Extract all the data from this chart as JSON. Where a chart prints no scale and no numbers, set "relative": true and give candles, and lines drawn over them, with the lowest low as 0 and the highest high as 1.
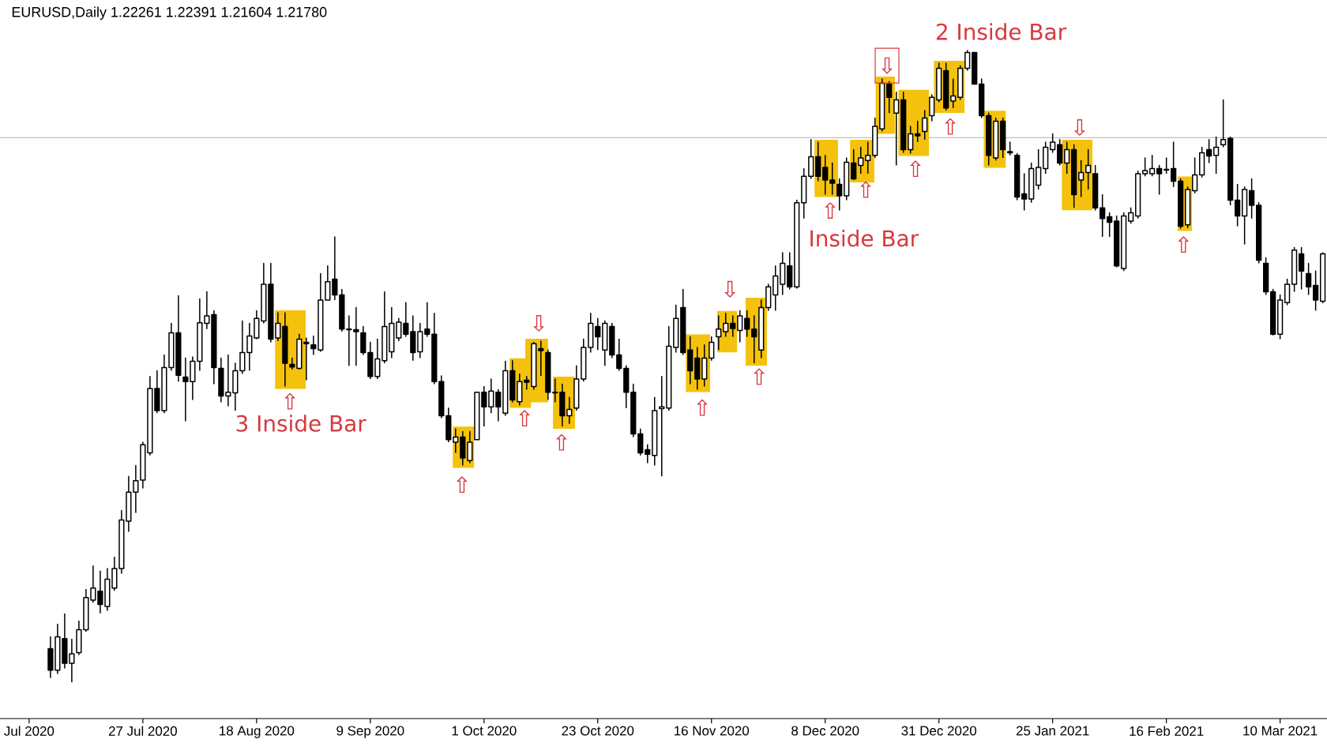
{
  "chart_data": {
    "type": "candlestick",
    "title": "EURUSD,Daily 1.22261 1.22391 1.21604 1.21780",
    "relative": true,
    "color": "#000000",
    "categories": [
      "Jul 2020",
      null,
      null,
      null,
      null,
      null,
      null,
      null,
      null,
      null,
      null,
      null,
      null,
      null,
      null,
      null,
      "27 Jul 2020",
      null,
      null,
      null,
      null,
      null,
      null,
      null,
      null,
      null,
      null,
      null,
      null,
      null,
      null,
      null,
      "18 Aug 2020",
      null,
      null,
      null,
      null,
      null,
      null,
      null,
      null,
      null,
      null,
      null,
      null,
      null,
      null,
      null,
      "9 Sep 2020",
      null,
      null,
      null,
      null,
      null,
      null,
      null,
      null,
      null,
      null,
      null,
      null,
      null,
      null,
      null,
      "1 Oct 2020",
      null,
      null,
      null,
      null,
      null,
      null,
      null,
      null,
      null,
      null,
      null,
      null,
      null,
      null,
      null,
      "23 Oct 2020",
      null,
      null,
      null,
      null,
      null,
      null,
      null,
      null,
      null,
      null,
      null,
      null,
      null,
      null,
      null,
      "16 Nov 2020",
      null,
      null,
      null,
      null,
      null,
      null,
      null,
      null,
      null,
      null,
      null,
      null,
      null,
      null,
      null,
      "8 Dec 2020",
      null,
      null,
      null,
      null,
      null,
      null,
      null,
      null,
      null,
      null,
      null,
      null,
      null,
      null,
      null,
      "31 Dec 2020",
      null,
      null,
      null,
      null,
      null,
      null,
      null,
      null,
      null,
      null,
      null,
      null,
      null,
      null,
      null,
      "25 Jan 2021",
      null,
      null,
      null,
      null,
      null,
      null,
      null,
      null,
      null,
      null,
      null,
      null,
      null,
      null,
      null,
      "16 Feb 2021",
      null,
      null,
      null,
      null,
      null,
      null,
      null,
      null,
      null,
      null,
      null,
      null,
      null,
      null,
      null,
      "10 Mar 2021",
      null,
      null,
      null,
      null,
      null,
      null
    ],
    "ohlc": [
      null,
      null,
      null,
      [
        0.053,
        0.072,
        0.007,
        0.019
      ],
      [
        0.019,
        0.092,
        0.013,
        0.072
      ],
      [
        0.069,
        0.108,
        0.022,
        0.03
      ],
      [
        0.03,
        0.068,
        0,
        0.045
      ],
      [
        0.047,
        0.097,
        0.043,
        0.083
      ],
      [
        0.083,
        0.147,
        0.08,
        0.134
      ],
      [
        0.13,
        0.184,
        0.126,
        0.149
      ],
      [
        0.144,
        0.176,
        0.109,
        0.123
      ],
      [
        0.12,
        0.18,
        0.113,
        0.163
      ],
      [
        0.149,
        0.198,
        0.145,
        0.18
      ],
      [
        0.18,
        0.272,
        0.172,
        0.257
      ],
      [
        0.255,
        0.326,
        0.238,
        0.301
      ],
      [
        0.301,
        0.343,
        0.268,
        0.319
      ],
      [
        0.32,
        0.38,
        0.307,
        0.376
      ],
      [
        0.363,
        0.484,
        0.359,
        0.465
      ],
      [
        0.465,
        0.493,
        0.426,
        0.43
      ],
      [
        0.43,
        0.518,
        0.426,
        0.498
      ],
      [
        0.498,
        0.568,
        0.493,
        0.553
      ],
      [
        0.553,
        0.612,
        0.476,
        0.486
      ],
      [
        0.483,
        0.513,
        0.413,
        0.476
      ],
      [
        0.476,
        0.515,
        0.447,
        0.508
      ],
      [
        0.508,
        0.607,
        0.493,
        0.569
      ],
      [
        0.568,
        0.618,
        0.559,
        0.58
      ],
      [
        0.582,
        0.588,
        0.472,
        0.498
      ],
      [
        0.497,
        0.513,
        0.443,
        0.453
      ],
      [
        0.453,
        0.518,
        0.437,
        0.459
      ],
      [
        0.458,
        0.505,
        0.43,
        0.493
      ],
      [
        0.493,
        0.572,
        0.488,
        0.522
      ],
      [
        0.522,
        0.568,
        0.493,
        0.548
      ],
      [
        0.545,
        0.588,
        0.543,
        0.576
      ],
      [
        0.572,
        0.663,
        0.568,
        0.63
      ],
      [
        0.63,
        0.663,
        0.538,
        0.543
      ],
      [
        0.545,
        0.585,
        0.54,
        0.568
      ],
      [
        0.563,
        0.585,
        0.468,
        0.505
      ],
      [
        0.503,
        0.513,
        0.495,
        0.499
      ],
      [
        0.497,
        0.551,
        0.495,
        0.543
      ],
      [
        0.538,
        0.545,
        0.478,
        0.536
      ],
      [
        0.534,
        0.548,
        0.518,
        0.528
      ],
      [
        0.526,
        0.647,
        0.523,
        0.605
      ],
      [
        0.605,
        0.659,
        0.605,
        0.634
      ],
      [
        0.638,
        0.705,
        0.605,
        0.613
      ],
      [
        0.613,
        0.622,
        0.555,
        0.559
      ],
      [
        0.559,
        0.58,
        0.501,
        0.558
      ],
      [
        0.558,
        0.593,
        0.501,
        0.555
      ],
      [
        0.553,
        0.563,
        0.518,
        0.522
      ],
      [
        0.522,
        0.538,
        0.48,
        0.484
      ],
      [
        0.484,
        0.543,
        0.48,
        0.512
      ],
      [
        0.509,
        0.618,
        0.505,
        0.563
      ],
      [
        0.523,
        0.593,
        0.513,
        0.568
      ],
      [
        0.545,
        0.576,
        0.54,
        0.57
      ],
      [
        0.568,
        0.601,
        0.547,
        0.551
      ],
      [
        0.555,
        0.58,
        0.509,
        0.522
      ],
      [
        0.523,
        0.568,
        0.513,
        0.555
      ],
      [
        0.559,
        0.601,
        0.547,
        0.551
      ],
      [
        0.551,
        0.584,
        0.472,
        0.476
      ],
      [
        0.476,
        0.485,
        0.418,
        0.422
      ],
      [
        0.422,
        0.434,
        0.38,
        0.384
      ],
      [
        0.38,
        0.401,
        0.363,
        0.388
      ],
      [
        0.388,
        0.397,
        0.343,
        0.355
      ],
      [
        0.351,
        0.397,
        0.347,
        0.38
      ],
      [
        0.384,
        0.459,
        0.384,
        0.459
      ],
      [
        0.459,
        0.468,
        0.405,
        0.436
      ],
      [
        0.436,
        0.48,
        0.426,
        0.461
      ],
      [
        0.459,
        0.463,
        0.413,
        0.436
      ],
      [
        0.426,
        0.508,
        0.422,
        0.493
      ],
      [
        0.493,
        0.509,
        0.443,
        0.447
      ],
      [
        0.444,
        0.488,
        0.438,
        0.476
      ],
      [
        0.478,
        0.484,
        0.463,
        0.475
      ],
      [
        0.468,
        0.538,
        0.463,
        0.536
      ],
      [
        0.528,
        0.54,
        0.485,
        0.525
      ],
      [
        0.522,
        0.526,
        0.447,
        0.459
      ],
      [
        0.459,
        0.48,
        0.443,
        0.458
      ],
      [
        0.459,
        0.472,
        0.405,
        0.422
      ],
      [
        0.422,
        0.451,
        0.409,
        0.432
      ],
      [
        0.434,
        0.501,
        0.43,
        0.48
      ],
      [
        0.48,
        0.543,
        0.476,
        0.53
      ],
      [
        0.53,
        0.584,
        0.522,
        0.568
      ],
      [
        0.563,
        0.576,
        0.526,
        0.547
      ],
      [
        0.526,
        0.572,
        0.501,
        0.568
      ],
      [
        0.563,
        0.568,
        0.513,
        0.518
      ],
      [
        0.518,
        0.543,
        0.493,
        0.497
      ],
      [
        0.497,
        0.501,
        0.434,
        0.459
      ],
      [
        0.459,
        0.472,
        0.388,
        0.393
      ],
      [
        0.393,
        0.401,
        0.359,
        0.363
      ],
      [
        0.368,
        0.376,
        0.347,
        0.361
      ],
      [
        0.359,
        0.451,
        0.343,
        0.43
      ],
      [
        0.433,
        0.484,
        0.326,
        0.436
      ],
      [
        0.434,
        0.563,
        0.43,
        0.532
      ],
      [
        0.53,
        0.597,
        0.522,
        0.576
      ],
      [
        0.593,
        0.622,
        0.518,
        0.522
      ],
      [
        0.526,
        0.547,
        0.472,
        0.493
      ],
      [
        0.513,
        0.53,
        0.463,
        0.48
      ],
      [
        0.48,
        0.534,
        0.468,
        0.513
      ],
      [
        0.513,
        0.547,
        0.509,
        0.538
      ],
      [
        0.547,
        0.58,
        0.526,
        0.559
      ],
      [
        0.555,
        0.584,
        0.547,
        0.568
      ],
      [
        0.568,
        0.58,
        0.547,
        0.56
      ],
      [
        0.557,
        0.588,
        0.538,
        0.58
      ],
      [
        0.576,
        0.588,
        0.547,
        0.559
      ],
      [
        0.559,
        0.58,
        0.505,
        0.547
      ],
      [
        0.526,
        0.605,
        0.513,
        0.593
      ],
      [
        0.593,
        0.63,
        0.588,
        0.626
      ],
      [
        0.613,
        0.659,
        0.588,
        0.643
      ],
      [
        0.63,
        0.68,
        0.613,
        0.663
      ],
      [
        0.659,
        0.68,
        0.622,
        0.626
      ],
      [
        0.626,
        0.763,
        0.623,
        0.759
      ],
      [
        0.759,
        0.813,
        0.734,
        0.801
      ],
      [
        0.801,
        0.859,
        0.797,
        0.832
      ],
      [
        0.832,
        0.855,
        0.793,
        0.801
      ],
      [
        0.815,
        0.834,
        0.772,
        0.795
      ],
      [
        0.795,
        0.822,
        0.772,
        0.79
      ],
      [
        0.788,
        0.797,
        0.747,
        0.77
      ],
      [
        0.77,
        0.83,
        0.763,
        0.823
      ],
      [
        0.822,
        0.843,
        0.795,
        0.797
      ],
      [
        0.818,
        0.847,
        0.805,
        0.83
      ],
      [
        0.826,
        0.855,
        0.805,
        0.834
      ],
      [
        0.834,
        0.893,
        0.83,
        0.88
      ],
      [
        0.876,
        0.955,
        0.872,
        0.948
      ],
      [
        0.947,
        0.951,
        0.901,
        0.926
      ],
      [
        0.901,
        0.934,
        0.818,
        0.922
      ],
      [
        0.922,
        0.934,
        0.838,
        0.843
      ],
      [
        0.843,
        0.88,
        0.837,
        0.868
      ],
      [
        0.868,
        0.888,
        0.855,
        0.865
      ],
      [
        0.872,
        0.905,
        0.859,
        0.893
      ],
      [
        0.897,
        0.93,
        0.888,
        0.926
      ],
      [
        0.922,
        0.98,
        0.918,
        0.972
      ],
      [
        0.968,
        0.98,
        0.905,
        0.909
      ],
      [
        0.92,
        0.955,
        0.909,
        0.928
      ],
      [
        0.926,
        0.976,
        0.922,
        0.972
      ],
      [
        0.972,
        1,
        0.968,
        0.997
      ],
      [
        0.997,
        0.997,
        0.947,
        0.947
      ],
      [
        0.947,
        0.955,
        0.893,
        0.897
      ],
      [
        0.897,
        0.901,
        0.818,
        0.834
      ],
      [
        0.83,
        0.893,
        0.826,
        0.888
      ],
      [
        0.888,
        0.893,
        0.83,
        0.843
      ],
      [
        0.84,
        0.855,
        0.834,
        0.838
      ],
      [
        0.834,
        0.837,
        0.763,
        0.768
      ],
      [
        0.773,
        0.805,
        0.747,
        0.765
      ],
      [
        0.765,
        0.822,
        0.759,
        0.813
      ],
      [
        0.787,
        0.843,
        0.78,
        0.815
      ],
      [
        0.813,
        0.855,
        0.805,
        0.847
      ],
      [
        0.843,
        0.868,
        0.838,
        0.855
      ],
      [
        0.851,
        0.859,
        0.818,
        0.822
      ],
      [
        0.822,
        0.855,
        0.805,
        0.843
      ],
      [
        0.843,
        0.851,
        0.751,
        0.772
      ],
      [
        0.795,
        0.826,
        0.768,
        0.807
      ],
      [
        0.807,
        0.843,
        0.78,
        0.818
      ],
      [
        0.805,
        0.818,
        0.747,
        0.751
      ],
      [
        0.751,
        0.772,
        0.705,
        0.734
      ],
      [
        0.737,
        0.743,
        0.705,
        0.728
      ],
      [
        0.73,
        0.738,
        0.657,
        0.659
      ],
      [
        0.655,
        0.743,
        0.651,
        0.738
      ],
      [
        0.73,
        0.751,
        0.726,
        0.743
      ],
      [
        0.738,
        0.809,
        0.734,
        0.805
      ],
      [
        0.805,
        0.83,
        0.801,
        0.81
      ],
      [
        0.805,
        0.834,
        0.801,
        0.813
      ],
      [
        0.813,
        0.818,
        0.772,
        0.805
      ],
      [
        0.812,
        0.83,
        0.805,
        0.811
      ],
      [
        0.813,
        0.855,
        0.784,
        0.793
      ],
      [
        0.793,
        0.797,
        0.718,
        0.722
      ],
      [
        0.724,
        0.784,
        0.719,
        0.78
      ],
      [
        0.778,
        0.83,
        0.774,
        0.803
      ],
      [
        0.803,
        0.847,
        0.799,
        0.838
      ],
      [
        0.843,
        0.859,
        0.822,
        0.833
      ],
      [
        0.834,
        0.863,
        0.805,
        0.847
      ],
      [
        0.851,
        0.922,
        0.847,
        0.859
      ],
      [
        0.861,
        0.863,
        0.755,
        0.763
      ],
      [
        0.763,
        0.788,
        0.722,
        0.738
      ],
      [
        0.738,
        0.784,
        0.693,
        0.78
      ],
      [
        0.778,
        0.797,
        0.734,
        0.755
      ],
      [
        0.755,
        0.759,
        0.663,
        0.668
      ],
      [
        0.663,
        0.672,
        0.613,
        0.618
      ],
      [
        0.618,
        0.622,
        0.549,
        0.551
      ],
      [
        0.551,
        0.613,
        0.543,
        0.605
      ],
      [
        0.601,
        0.638,
        0.597,
        0.63
      ],
      [
        0.63,
        0.688,
        0.618,
        0.684
      ],
      [
        0.678,
        0.688,
        0.622,
        0.651
      ],
      [
        0.647,
        0.663,
        0.613,
        0.626
      ],
      [
        0.628,
        0.651,
        0.588,
        0.605
      ],
      [
        0.603,
        0.68,
        0.6,
        0.678
      ]
    ],
    "ref_lines": [
      {
        "axis": "y",
        "value": 0.862,
        "color": "#c0c0c0"
      }
    ],
    "annotations": [
      "3 Inside Bar",
      "Inside Bar",
      "2 Inside Bar",
      "⇧",
      "⇧",
      "⇧",
      "⇩",
      "⇧",
      "⇧",
      "⇩",
      "⇧",
      "⇧",
      "⇧",
      "⇩",
      "⇧",
      "⇧",
      "⇩",
      "⇧"
    ]
  }
}
